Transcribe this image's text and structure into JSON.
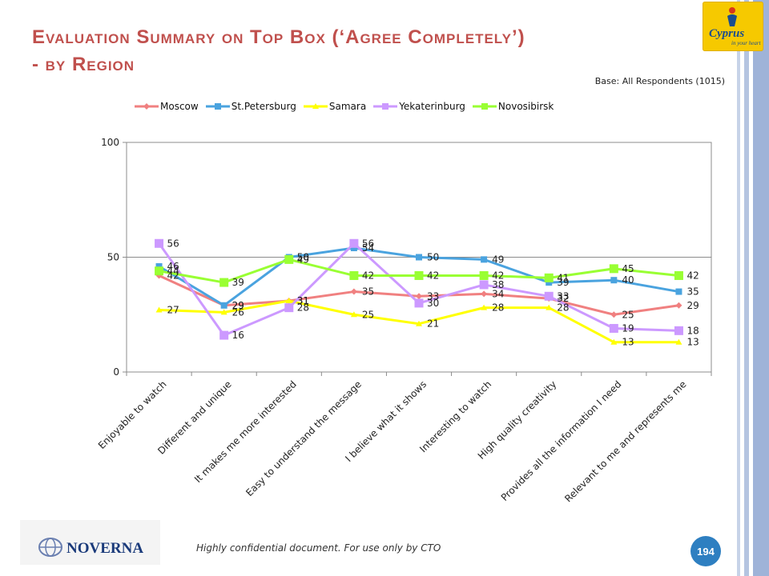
{
  "slide": {
    "title_line1": "Evaluation Summary on Top Box (‘Agree Completely’)",
    "title_line2": "- by Region",
    "base_note": "Base: All Respondents (1015)",
    "footer_text": "Highly confidential document. For use only by CTO",
    "page_number": "194",
    "logo_cyprus_text": "Cyprus",
    "logo_cyprus_sub": "in your heart",
    "logo_noverna_text": "NOVERNA"
  },
  "chart_data": {
    "type": "line",
    "categories": [
      "Enjoyable to watch",
      "Different and unique",
      "It makes me more interested",
      "Easy to understand the message",
      "I believe what it shows",
      "Interesting to watch",
      "High quality creativity",
      "Provides all the information I need",
      "Relevant to me and represents me"
    ],
    "y_ticks": [
      "0",
      "50",
      "100"
    ],
    "ylim": [
      0,
      100
    ],
    "legend_position": "top",
    "series": [
      {
        "name": "Moscow",
        "color": "#f08080",
        "marker": "diamond",
        "values": [
          42,
          29,
          31,
          35,
          33,
          34,
          32,
          25,
          29
        ]
      },
      {
        "name": "St.Petersburg",
        "color": "#4aa3df",
        "marker": "square",
        "values": [
          46,
          29,
          50,
          54,
          50,
          49,
          39,
          40,
          35
        ]
      },
      {
        "name": "Samara",
        "color": "#ffff00",
        "marker": "triangle",
        "values": [
          27,
          26,
          31,
          25,
          21,
          28,
          28,
          13,
          13
        ]
      },
      {
        "name": "Yekaterinburg",
        "color": "#cc99ff",
        "marker": "square",
        "values": [
          56,
          16,
          28,
          56,
          30,
          38,
          33,
          19,
          18
        ]
      },
      {
        "name": "Novosibirsk",
        "color": "#99ff33",
        "marker": "square",
        "values": [
          44,
          39,
          49,
          42,
          42,
          42,
          41,
          45,
          42
        ]
      }
    ]
  }
}
